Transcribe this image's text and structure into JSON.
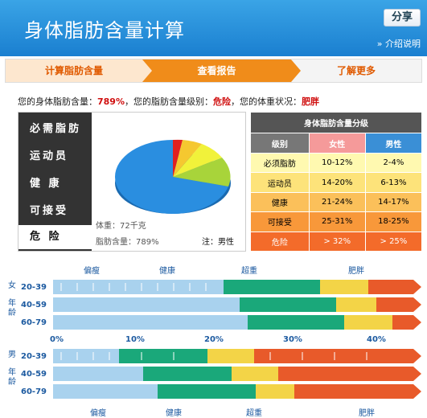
{
  "header": {
    "title": "身体脂肪含量计算",
    "share_label": "分享",
    "intro_label": "介绍说明"
  },
  "steps": [
    {
      "label": "计算脂肪含量"
    },
    {
      "label": "查看报告"
    },
    {
      "label": "了解更多"
    }
  ],
  "summary": {
    "p1": "您的身体脂肪含量：",
    "fat_value": "789%",
    "p2": "，您的脂肪含量级别：",
    "level_value": "危险",
    "p3": "，您的体重状况：",
    "weight_status": "肥胖"
  },
  "levels": [
    "必需脂肪",
    "运动员",
    "健  康",
    "可接受",
    "危   险"
  ],
  "pie": {
    "weight": "体重：72千克",
    "fat": "脂肪含量：789%",
    "sex": "注：男性"
  },
  "grade_table": {
    "caption": "身体脂肪含量分级",
    "headers": [
      "级别",
      "女性",
      "男性"
    ],
    "rows": [
      [
        "必须脂肪",
        "10-12%",
        "2-4%"
      ],
      [
        "运动员",
        "14-20%",
        "6-13%"
      ],
      [
        "健康",
        "21-24%",
        "14-17%"
      ],
      [
        "可接受",
        "25-31%",
        "18-25%"
      ],
      [
        "危险",
        "> 32%",
        "> 25%"
      ]
    ]
  },
  "female": {
    "sex": "女",
    "age_label": "年龄",
    "zones": [
      "偏瘦",
      "健康",
      "超重",
      "肥胖"
    ],
    "ages": [
      "20-39",
      "40-59",
      "60-79"
    ]
  },
  "male": {
    "sex": "男",
    "age_label": "年龄",
    "zones": [
      "偏瘦",
      "健康",
      "超重",
      "肥胖"
    ],
    "ages": [
      "20-39",
      "40-59",
      "60-79"
    ]
  },
  "pct_ticks": [
    "0%",
    "10%",
    "20%",
    "30%",
    "40%"
  ],
  "colors": {
    "under": "#a9d2ee",
    "healthy": "#1aa87a",
    "over": "#f3d447",
    "obese": "#e85a2a"
  }
}
